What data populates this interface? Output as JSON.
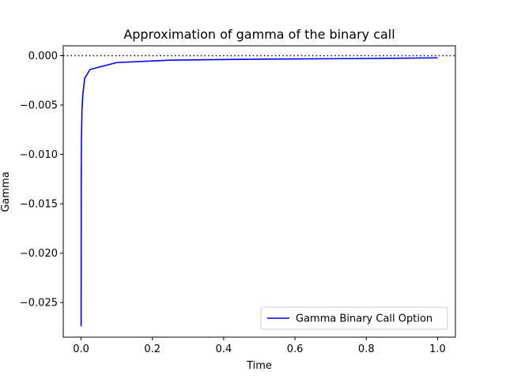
{
  "chart_data": {
    "type": "line",
    "title": "Approximation of gamma of the binary call",
    "xlabel": "Time",
    "ylabel": "Gamma",
    "xlim": [
      -0.05,
      1.05
    ],
    "ylim": [
      -0.0285,
      0.001
    ],
    "x_ticks": [
      0.0,
      0.2,
      0.4,
      0.6,
      0.8,
      1.0
    ],
    "x_tick_labels": [
      "0.0",
      "0.2",
      "0.4",
      "0.6",
      "0.8",
      "1.0"
    ],
    "y_ticks": [
      0.0,
      -0.005,
      -0.01,
      -0.015,
      -0.02,
      -0.025
    ],
    "y_tick_labels": [
      "0.000",
      "−0.005",
      "−0.010",
      "−0.015",
      "−0.020",
      "−0.025"
    ],
    "grid": false,
    "legend_position": "lower-right",
    "reference_line": {
      "y": 0.0,
      "style": "dotted",
      "color": "#000000"
    },
    "series": [
      {
        "name": "Gamma Binary Call Option",
        "color": "#0000ff",
        "x": [
          0.0001,
          0.0005,
          0.001,
          0.0025,
          0.005,
          0.01,
          0.025,
          0.1,
          0.25,
          0.5,
          0.75,
          1.0
        ],
        "y": [
          -0.0274,
          -0.0123,
          -0.0087,
          -0.0055,
          -0.0039,
          -0.0023,
          -0.0014,
          -0.0007,
          -0.00045,
          -0.00035,
          -0.0003,
          -0.00022
        ]
      }
    ]
  }
}
